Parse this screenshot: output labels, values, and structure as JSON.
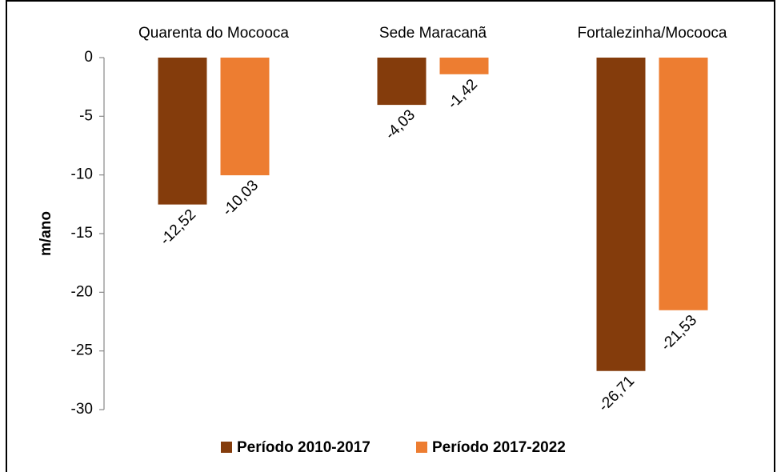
{
  "chart_data": {
    "type": "bar",
    "categories": [
      "Quarenta do Mocooca",
      "Sede Maracanã",
      "Fortalezinha/Mocooca"
    ],
    "series": [
      {
        "name": "Período 2010-2017",
        "color": "#843C0C",
        "values": [
          -12.52,
          -4.03,
          -26.71
        ],
        "value_labels": [
          "-12,52",
          "-4,03",
          "-26,71"
        ]
      },
      {
        "name": "Período 2017-2022",
        "color": "#ED7D31",
        "values": [
          -10.03,
          -1.42,
          -21.53
        ],
        "value_labels": [
          "-10,03",
          "-1,42",
          "-21,53"
        ]
      }
    ],
    "ylabel": "m/ano",
    "ylim": [
      -30,
      0
    ],
    "yticks": [
      0,
      -5,
      -10,
      -15,
      -20,
      -25,
      -30
    ],
    "legend": "bottom"
  }
}
